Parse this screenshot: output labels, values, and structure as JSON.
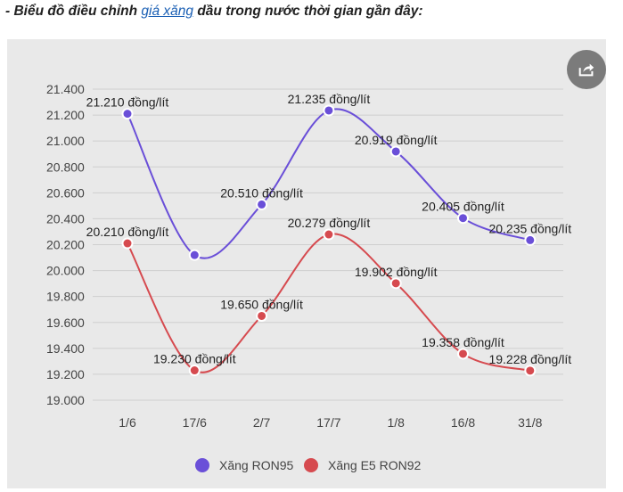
{
  "heading": {
    "prefix": "- Biểu đồ điều chỉnh ",
    "link": "giá xăng",
    "suffix": " dầu trong nước thời gian gần đây:"
  },
  "share": {
    "icon": "share-icon",
    "color": "#7b7b7b"
  },
  "chart_data": {
    "type": "line",
    "categories": [
      "1/6",
      "17/6",
      "2/7",
      "17/7",
      "1/8",
      "16/8",
      "31/8"
    ],
    "yticks": [
      "21.400",
      "21.200",
      "21.000",
      "20.800",
      "20.600",
      "20.400",
      "20.200",
      "20.000",
      "19.800",
      "19.600",
      "19.400",
      "19.200",
      "19.000"
    ],
    "ylim": [
      19000,
      21400
    ],
    "grid": true,
    "legend_position": "bottom",
    "series": [
      {
        "name": "Xăng RON95",
        "color": "#6a4fd8",
        "values": [
          21210,
          20120,
          20510,
          21235,
          20919,
          20405,
          20235
        ],
        "labels": [
          "21.210 đồng/lít",
          "",
          "20.510 đồng/lít",
          "21.235 đồng/lít",
          "20.919 đồng/lít",
          "20.405 đồng/lít",
          "20.235 đồng/lít"
        ]
      },
      {
        "name": "Xăng E5 RON92",
        "color": "#d64a4f",
        "values": [
          20210,
          19230,
          19650,
          20279,
          19902,
          19358,
          19228
        ],
        "labels": [
          "20.210 đồng/lít",
          "19.230 đồng/lít",
          "19.650 đồng/lít",
          "20.279 đồng/lít",
          "19.902 đồng/lít",
          "19.358 đồng/lít",
          "19.228 đồng/lít"
        ]
      }
    ]
  }
}
